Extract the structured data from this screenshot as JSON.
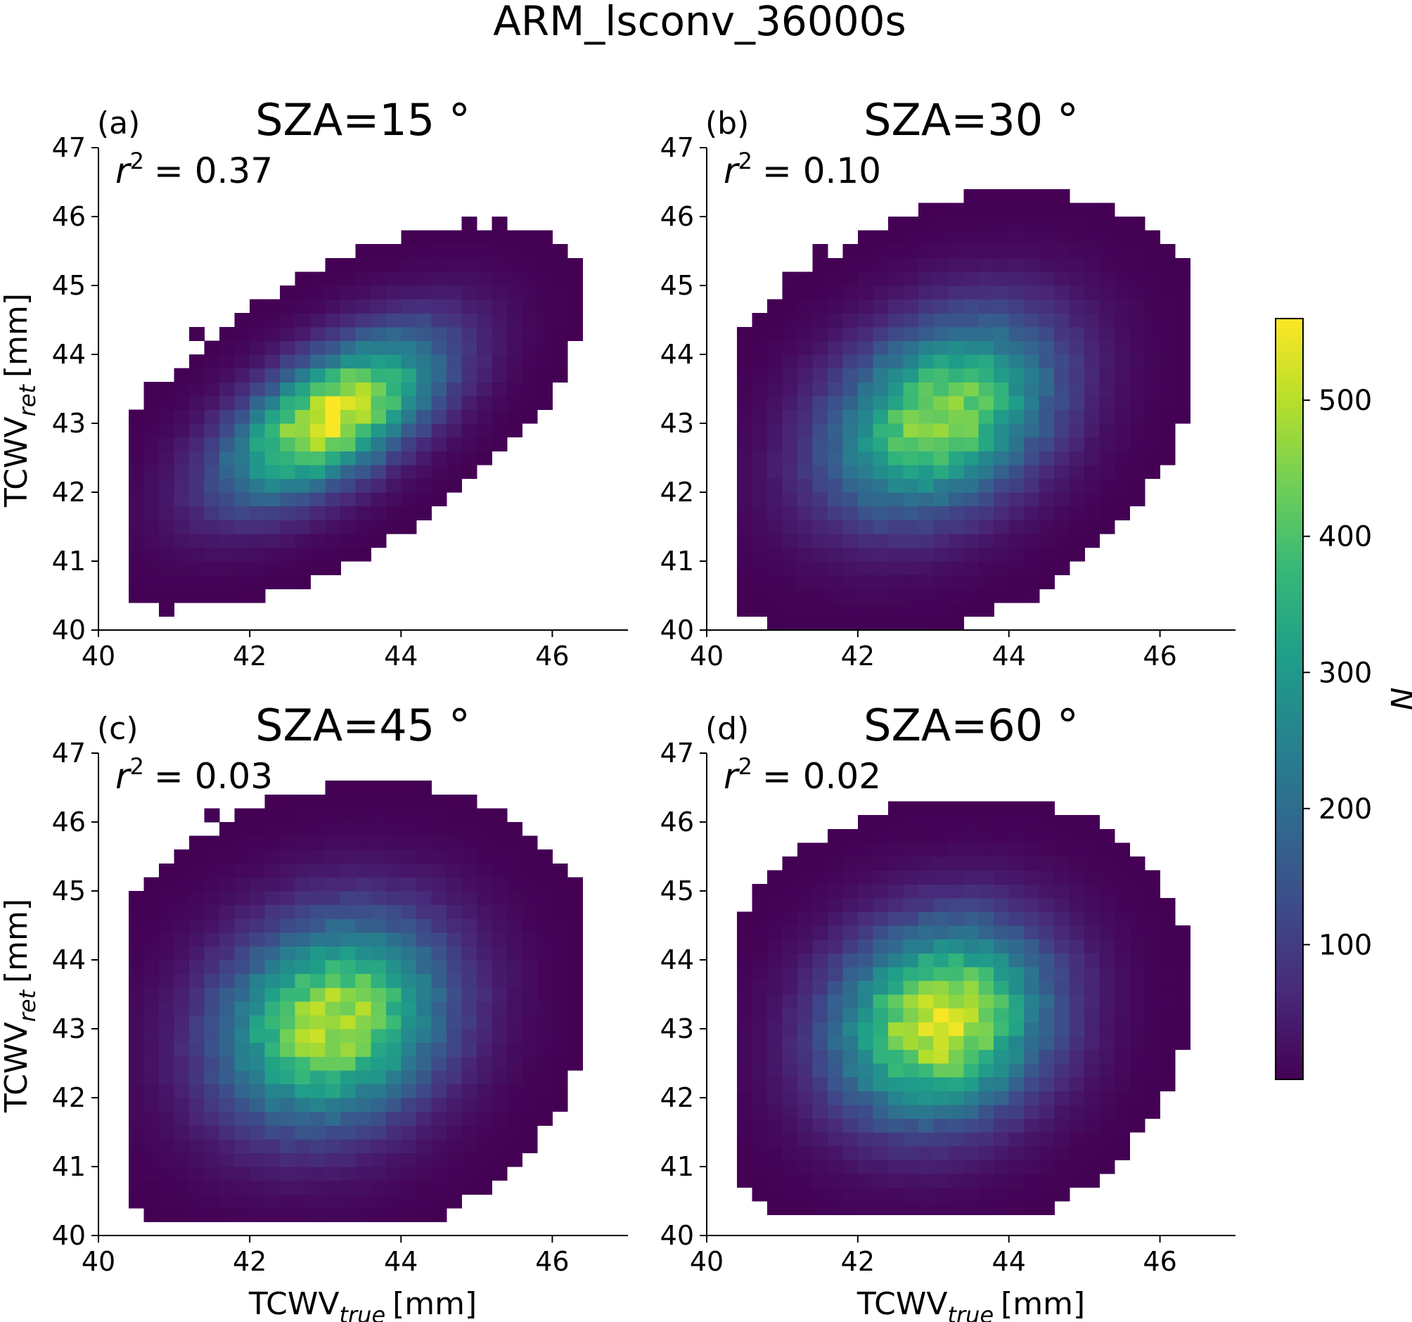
{
  "figure": {
    "suptitle": "ARM_lsconv_36000s"
  },
  "chart_data": [
    {
      "type": "heatmap",
      "panel_label": "(a)",
      "title": "SZA=15 °",
      "r2_label": "= 0.37",
      "r2": 0.37,
      "xlabel": "",
      "ylabel_main": "TCWV",
      "ylabel_sub": "ret",
      "ylabel_unit": "[mm]",
      "xlim": [
        40,
        47
      ],
      "ylim": [
        40,
        47
      ],
      "xticks": [
        "40",
        "42",
        "44",
        "46"
      ],
      "yticks": [
        "40",
        "41",
        "42",
        "43",
        "44",
        "45",
        "46",
        "47"
      ],
      "xtick_values": [
        40,
        42,
        44,
        46
      ],
      "ytick_values": [
        40,
        41,
        42,
        43,
        44,
        45,
        46,
        47
      ],
      "bin_width": 0.2,
      "distribution": {
        "center_x": 43.1,
        "center_y": 43.1,
        "sigma_x": 0.95,
        "sigma_y": 0.8,
        "corr": 0.6,
        "peak": 540,
        "x_range": [
          40.4,
          46.3
        ],
        "y_range": [
          40.0,
          46.2
        ]
      }
    },
    {
      "type": "heatmap",
      "panel_label": "(b)",
      "title": "SZA=30 °",
      "r2_label": "= 0.10",
      "r2": 0.1,
      "xlabel": "",
      "ylabel_main": "",
      "ylabel_sub": "",
      "ylabel_unit": "",
      "xlim": [
        40,
        47
      ],
      "ylim": [
        40,
        47
      ],
      "xticks": [
        "40",
        "42",
        "44",
        "46"
      ],
      "yticks": [
        "40",
        "41",
        "42",
        "43",
        "44",
        "45",
        "46",
        "47"
      ],
      "xtick_values": [
        40,
        42,
        44,
        46
      ],
      "ytick_values": [
        40,
        41,
        42,
        43,
        44,
        45,
        46,
        47
      ],
      "bin_width": 0.2,
      "distribution": {
        "center_x": 43.1,
        "center_y": 43.1,
        "sigma_x": 1.0,
        "sigma_y": 0.95,
        "corr": 0.32,
        "peak": 470,
        "x_range": [
          40.4,
          46.3
        ],
        "y_range": [
          40.0,
          46.5
        ]
      }
    },
    {
      "type": "heatmap",
      "panel_label": "(c)",
      "title": "SZA=45 °",
      "r2_label": "= 0.03",
      "r2": 0.03,
      "xlabel_main": "TCWV",
      "xlabel_sub": "true",
      "xlabel_unit": "[mm]",
      "ylabel_main": "TCWV",
      "ylabel_sub": "ret",
      "ylabel_unit": "[mm]",
      "xlim": [
        40,
        47
      ],
      "ylim": [
        40,
        47
      ],
      "xticks": [
        "40",
        "42",
        "44",
        "46"
      ],
      "yticks": [
        "40",
        "41",
        "42",
        "43",
        "44",
        "45",
        "46",
        "47"
      ],
      "xtick_values": [
        40,
        42,
        44,
        46
      ],
      "ytick_values": [
        40,
        41,
        42,
        43,
        44,
        45,
        46,
        47
      ],
      "bin_width": 0.2,
      "distribution": {
        "center_x": 43.1,
        "center_y": 43.1,
        "sigma_x": 1.0,
        "sigma_y": 1.0,
        "corr": 0.17,
        "peak": 500,
        "x_range": [
          40.4,
          46.3
        ],
        "y_range": [
          40.2,
          46.6
        ]
      }
    },
    {
      "type": "heatmap",
      "panel_label": "(d)",
      "title": "SZA=60 °",
      "r2_label": "= 0.02",
      "r2": 0.02,
      "xlabel_main": "TCWV",
      "xlabel_sub": "true",
      "xlabel_unit": "[mm]",
      "ylabel_main": "",
      "ylabel_sub": "",
      "ylabel_unit": "",
      "xlim": [
        40,
        47
      ],
      "ylim": [
        40,
        47
      ],
      "xticks": [
        "40",
        "42",
        "44",
        "46"
      ],
      "yticks": [
        "40",
        "41",
        "42",
        "43",
        "44",
        "45",
        "46",
        "47"
      ],
      "xtick_values": [
        40,
        42,
        44,
        46
      ],
      "ytick_values": [
        40,
        41,
        42,
        43,
        44,
        45,
        46,
        47
      ],
      "bin_width": 0.2,
      "distribution": {
        "center_x": 43.1,
        "center_y": 43.1,
        "sigma_x": 0.95,
        "sigma_y": 0.95,
        "corr": 0.14,
        "peak": 540,
        "x_range": [
          40.4,
          46.3
        ],
        "y_range": [
          40.3,
          46.3
        ]
      }
    }
  ],
  "colorbar": {
    "label": "N",
    "colormap": "viridis",
    "range": [
      1,
      560
    ],
    "ticks": [
      "100",
      "200",
      "300",
      "400",
      "500"
    ],
    "tick_values": [
      100,
      200,
      300,
      400,
      500
    ]
  }
}
